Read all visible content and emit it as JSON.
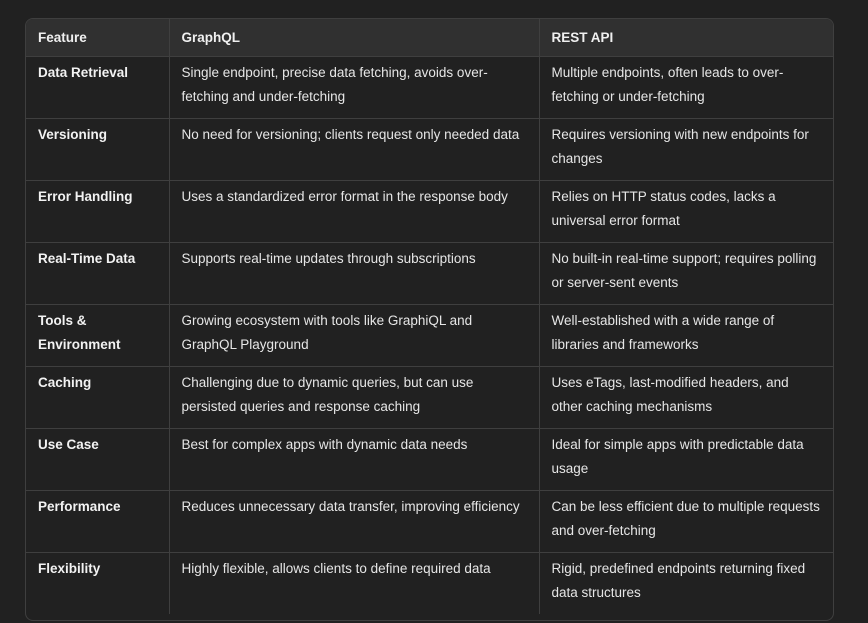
{
  "table": {
    "headers": [
      "Feature",
      "GraphQL",
      "REST API"
    ],
    "rows": [
      [
        "Data Retrieval",
        "Single endpoint, precise data fetching, avoids over-fetching and under-fetching",
        "Multiple endpoints, often leads to over-fetching or under-fetching"
      ],
      [
        "Versioning",
        "No need for versioning; clients request only needed data",
        "Requires versioning with new endpoints for changes"
      ],
      [
        "Error Handling",
        "Uses a standardized error format in the response body",
        "Relies on HTTP status codes, lacks a universal error format"
      ],
      [
        "Real-Time Data",
        "Supports real-time updates through subscriptions",
        "No built-in real-time support; requires polling or server-sent events"
      ],
      [
        "Tools & Environment",
        "Growing ecosystem with tools like GraphiQL and GraphQL Playground",
        "Well-established with a wide range of libraries and frameworks"
      ],
      [
        "Caching",
        "Challenging due to dynamic queries, but can use persisted queries and response caching",
        "Uses eTags, last-modified headers, and other caching mechanisms"
      ],
      [
        "Use Case",
        "Best for complex apps with dynamic data needs",
        "Ideal for simple apps with predictable data usage"
      ],
      [
        "Performance",
        "Reduces unnecessary data transfer, improving efficiency",
        "Can be less efficient due to multiple requests and over-fetching"
      ],
      [
        "Flexibility",
        "Highly flexible, allows clients to define required data",
        "Rigid, predefined endpoints returning fixed data structures"
      ]
    ]
  }
}
